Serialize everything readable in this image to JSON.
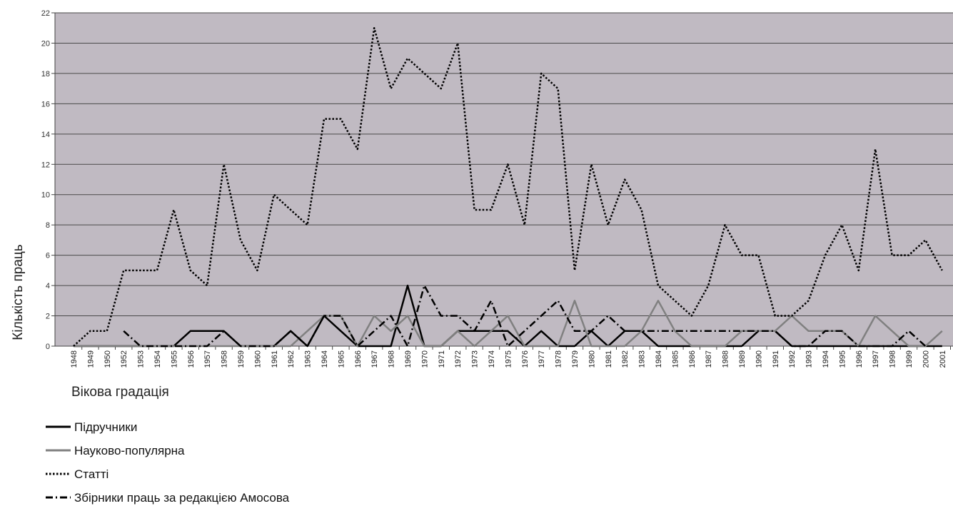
{
  "chart_data": {
    "type": "line",
    "title": "",
    "xlabel": "Вікова градація",
    "ylabel": "Кількість праць",
    "ylim": [
      0,
      22
    ],
    "yticks": [
      0,
      2,
      4,
      6,
      8,
      10,
      12,
      14,
      16,
      18,
      20,
      22
    ],
    "grid": true,
    "plot_background": "#c0bac2",
    "legend_position": "bottom-left",
    "categories": [
      "1948",
      "1949",
      "1950",
      "1952",
      "1953",
      "1954",
      "1955",
      "1956",
      "1957",
      "1958",
      "1959",
      "1960",
      "1961",
      "1962",
      "1963",
      "1964",
      "1965",
      "1966",
      "1967",
      "1968",
      "1969",
      "1970",
      "1971",
      "1972",
      "1973",
      "1974",
      "1975",
      "1976",
      "1977",
      "1978",
      "1979",
      "1980",
      "1981",
      "1982",
      "1983",
      "1984",
      "1985",
      "1986",
      "1987",
      "1988",
      "1989",
      "1990",
      "1991",
      "1992",
      "1993",
      "1994",
      "1995",
      "1996",
      "1997",
      "1998",
      "1999",
      "2000",
      "2001"
    ],
    "series": [
      {
        "name": "Підручники",
        "style": "solid",
        "color": "#000000",
        "values": [
          0,
          0,
          0,
          0,
          0,
          0,
          0,
          1,
          1,
          1,
          0,
          0,
          0,
          1,
          0,
          2,
          1,
          0,
          0,
          0,
          4,
          0,
          0,
          1,
          1,
          1,
          1,
          0,
          1,
          0,
          0,
          1,
          0,
          1,
          1,
          0,
          0,
          0,
          0,
          0,
          0,
          1,
          1,
          0,
          0,
          0,
          0,
          0,
          0,
          0,
          0,
          0,
          0
        ]
      },
      {
        "name": "Науково-популярна",
        "style": "solid",
        "color": "#808080",
        "values": [
          0,
          0,
          0,
          0,
          0,
          0,
          0,
          0,
          0,
          0,
          0,
          0,
          0,
          0,
          1,
          2,
          2,
          0,
          2,
          1,
          2,
          0,
          0,
          1,
          0,
          1,
          2,
          0,
          0,
          0,
          3,
          0,
          0,
          0,
          1,
          3,
          1,
          0,
          0,
          0,
          1,
          1,
          1,
          2,
          1,
          1,
          1,
          0,
          2,
          1,
          0,
          0,
          1
        ]
      },
      {
        "name": "Статті",
        "style": "dotted",
        "color": "#000000",
        "values": [
          0,
          1,
          1,
          5,
          5,
          5,
          9,
          5,
          4,
          12,
          7,
          5,
          10,
          9,
          8,
          15,
          15,
          13,
          21,
          17,
          19,
          18,
          17,
          20,
          9,
          9,
          12,
          8,
          18,
          17,
          5,
          12,
          8,
          11,
          9,
          4,
          3,
          2,
          4,
          8,
          6,
          6,
          2,
          2,
          3,
          6,
          8,
          5,
          13,
          6,
          6,
          7,
          5
        ]
      },
      {
        "name": "Збірники праць  за  редакцією Амосова",
        "style": "dashdot",
        "color": "#000000",
        "values": [
          null,
          null,
          null,
          1,
          0,
          0,
          0,
          0,
          0,
          1,
          0,
          0,
          0,
          1,
          0,
          2,
          2,
          0,
          1,
          2,
          0,
          4,
          2,
          2,
          1,
          3,
          0,
          1,
          2,
          3,
          1,
          1,
          2,
          1,
          1,
          1,
          1,
          1,
          1,
          1,
          1,
          1,
          1,
          0,
          0,
          1,
          1,
          0,
          0,
          0,
          1,
          0,
          null
        ]
      }
    ]
  }
}
